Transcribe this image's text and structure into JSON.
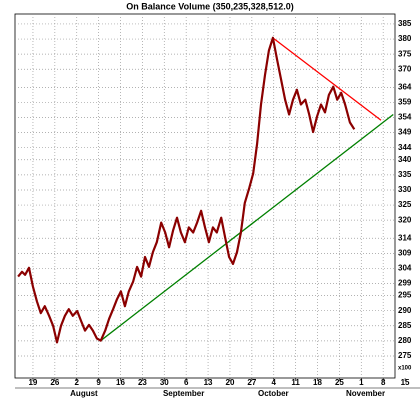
{
  "chart_data": {
    "type": "line",
    "title": "On Balance Volume (350,235,328,512.0)",
    "y_unit": "x100",
    "color": "#8b0000",
    "grid": true,
    "xlim": [
      -4.1,
      82.7
    ],
    "ylim": [
      267.7,
      388.3
    ],
    "xticks": [
      {
        "value": 0,
        "label": "19"
      },
      {
        "value": 5,
        "label": "26"
      },
      {
        "value": 10,
        "label": "2"
      },
      {
        "value": 15,
        "label": "9"
      },
      {
        "value": 20,
        "label": "16"
      },
      {
        "value": 25,
        "label": "23"
      },
      {
        "value": 30,
        "label": "30"
      },
      {
        "value": 35,
        "label": "6"
      },
      {
        "value": 40,
        "label": "13"
      },
      {
        "value": 45,
        "label": "20"
      },
      {
        "value": 50,
        "label": "27"
      },
      {
        "value": 55,
        "label": "4"
      },
      {
        "value": 60,
        "label": "11"
      },
      {
        "value": 65,
        "label": "18"
      },
      {
        "value": 70,
        "label": "25"
      },
      {
        "value": 75,
        "label": "1"
      },
      {
        "value": 80,
        "label": "8"
      },
      {
        "value": 85,
        "label": "15"
      }
    ],
    "months": [
      {
        "label": "August",
        "x": 8.5
      },
      {
        "label": "September",
        "x": 29.7
      },
      {
        "label": "October",
        "x": 51.4
      },
      {
        "label": "November",
        "x": 71.5
      }
    ],
    "yticks": [
      385,
      380,
      375,
      370,
      364,
      359,
      354,
      349,
      344,
      340,
      335,
      330,
      325,
      320,
      314,
      309,
      304,
      299,
      295,
      290,
      285,
      280,
      275
    ],
    "x": [
      -3.4,
      -2.5,
      -1.8,
      -0.9,
      0,
      0.9,
      1.8,
      2.7,
      3.7,
      4.6,
      5.5,
      6.4,
      7.3,
      8.2,
      9.1,
      10.1,
      11,
      11.9,
      12.8,
      13.7,
      14.6,
      15.5,
      16.5,
      17.4,
      18.3,
      19.2,
      20.1,
      21,
      21.9,
      22.9,
      23.8,
      24.7,
      25.6,
      26.5,
      27.4,
      28.3,
      29.3,
      30.2,
      31.1,
      32,
      32.9,
      33.8,
      34.7,
      35.6,
      36.6,
      37.5,
      38.4,
      39.3,
      40.2,
      41.1,
      42,
      43,
      43.9,
      44.8,
      45.7,
      46.6,
      47.5,
      48.4,
      49.4,
      50.3,
      51.2,
      52.1,
      53,
      53.9,
      54.8,
      55.8,
      56.7,
      57.6,
      58.5,
      59.4,
      60.3,
      61.2,
      62.2,
      63.1,
      64,
      64.9,
      65.8,
      66.7,
      67.6,
      68.6,
      69.5,
      70.4,
      71.3,
      72.4,
      73.4
    ],
    "values": [
      301.3,
      302.9,
      301.9,
      304.2,
      298,
      293.1,
      289.2,
      291.5,
      288.3,
      285,
      279.5,
      285,
      288.3,
      290.5,
      288.3,
      289.9,
      286.6,
      283.4,
      285.3,
      283.4,
      280.8,
      280.1,
      283.4,
      287.3,
      290.5,
      293.8,
      296.4,
      291.5,
      296.4,
      299.7,
      304.5,
      301.3,
      307.8,
      304.5,
      309.4,
      312.7,
      319.2,
      315.9,
      311,
      316.5,
      320.8,
      315.9,
      312.7,
      317.6,
      315.9,
      319.2,
      323.1,
      317.6,
      312.7,
      317.6,
      315.9,
      320.8,
      314.3,
      307.8,
      305.5,
      309.4,
      315.9,
      325.7,
      330.6,
      335.5,
      345.3,
      358.3,
      368.1,
      376.2,
      380.4,
      373,
      366.4,
      359.9,
      355,
      359.9,
      363.2,
      358.3,
      359.9,
      355,
      349.2,
      354.4,
      358.3,
      355.7,
      361.5,
      364.2,
      359.9,
      362.2,
      358.3,
      352.4,
      350.1
    ],
    "trend_lines": [
      {
        "color": "#ff0000",
        "x": [
          54.8,
          79.5
        ],
        "values": [
          380.4,
          353.1
        ]
      },
      {
        "color": "#008000",
        "x": [
          15.5,
          82.3
        ],
        "values": [
          280.1,
          355
        ]
      }
    ]
  }
}
